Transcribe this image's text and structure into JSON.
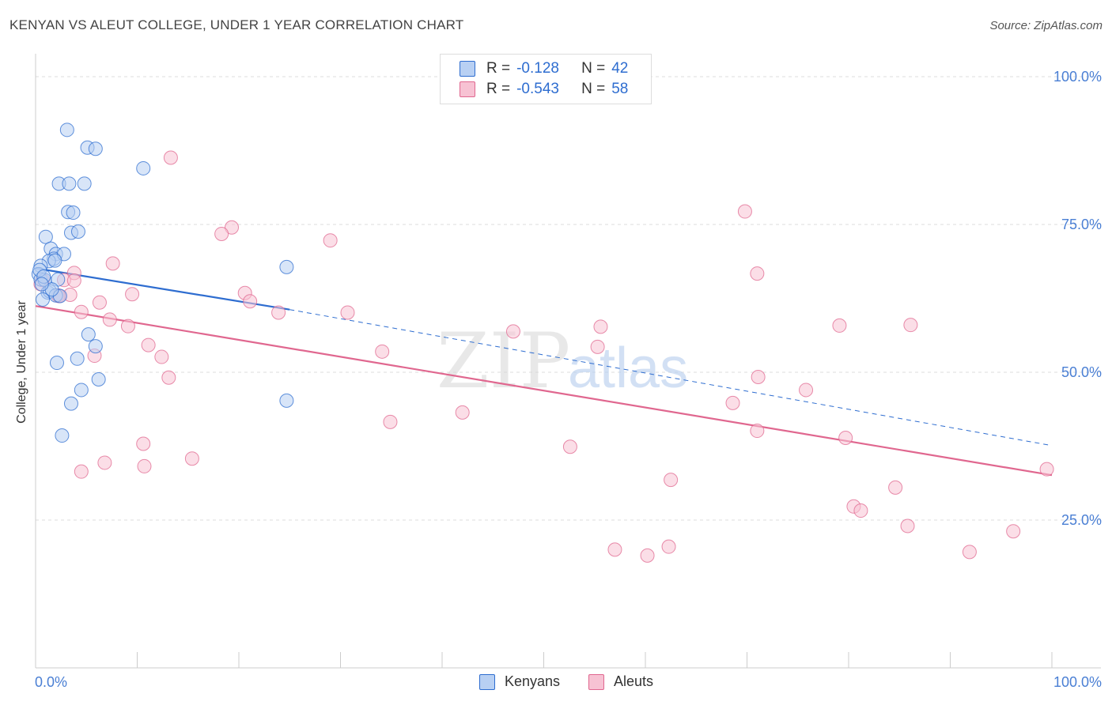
{
  "title": "KENYAN VS ALEUT COLLEGE, UNDER 1 YEAR CORRELATION CHART",
  "source": "Source: ZipAtlas.com",
  "watermark": {
    "zip": "ZIP",
    "atlas": "atlas"
  },
  "legend": {
    "kenyans": {
      "r_label": "R =",
      "r_value": "-0.128",
      "n_label": "N =",
      "n_value": "42"
    },
    "aleuts": {
      "r_label": "R =",
      "r_value": "-0.543",
      "n_label": "N =",
      "n_value": "58"
    }
  },
  "bottom_legend": {
    "kenyans": "Kenyans",
    "aleuts": "Aleuts"
  },
  "chart_data": {
    "type": "scatter",
    "title": "KENYAN VS ALEUT COLLEGE, UNDER 1 YEAR CORRELATION CHART",
    "xlabel": "",
    "ylabel": "College, Under 1 year",
    "xlim": [
      0,
      100
    ],
    "ylim": [
      0,
      104
    ],
    "x_tick_labels": [
      {
        "value": 0,
        "label": "0.0%"
      },
      {
        "value": 100,
        "label": "100.0%"
      }
    ],
    "y_tick_labels": [
      {
        "value": 25,
        "label": "25.0%"
      },
      {
        "value": 50,
        "label": "50.0%"
      },
      {
        "value": 75,
        "label": "75.0%"
      },
      {
        "value": 100,
        "label": "100.0%"
      }
    ],
    "colors": {
      "kenyans": "#2e6dd0",
      "kenyans_fill": "#b8d0f3",
      "aleuts": "#e0678f",
      "aleuts_fill": "#f7c2d3",
      "axis_label": "#4a7fd4"
    },
    "series": [
      {
        "name": "Kenyans",
        "points": [
          [
            3.1,
            91.0
          ],
          [
            5.1,
            88.0
          ],
          [
            5.9,
            87.8
          ],
          [
            10.6,
            84.5
          ],
          [
            2.3,
            81.9
          ],
          [
            3.3,
            81.9
          ],
          [
            4.8,
            81.9
          ],
          [
            3.2,
            77.1
          ],
          [
            3.7,
            77.0
          ],
          [
            1.0,
            72.9
          ],
          [
            3.5,
            73.6
          ],
          [
            4.2,
            73.8
          ],
          [
            1.5,
            70.9
          ],
          [
            2.0,
            70.0
          ],
          [
            1.8,
            69.2
          ],
          [
            1.3,
            68.8
          ],
          [
            2.8,
            70.0
          ],
          [
            0.5,
            68.0
          ],
          [
            0.3,
            66.6
          ],
          [
            0.5,
            65.7
          ],
          [
            0.9,
            65.6
          ],
          [
            2.2,
            65.7
          ],
          [
            1.2,
            63.5
          ],
          [
            1.4,
            63.7
          ],
          [
            2.0,
            63.0
          ],
          [
            2.4,
            62.9
          ],
          [
            0.7,
            62.3
          ],
          [
            24.7,
            67.8
          ],
          [
            5.2,
            56.4
          ],
          [
            5.9,
            54.4
          ],
          [
            4.1,
            52.3
          ],
          [
            2.1,
            51.6
          ],
          [
            6.2,
            48.8
          ],
          [
            4.5,
            47.0
          ],
          [
            3.5,
            44.7
          ],
          [
            2.6,
            39.3
          ],
          [
            24.7,
            45.2
          ],
          [
            0.4,
            67.3
          ],
          [
            0.8,
            66.2
          ],
          [
            1.6,
            64.0
          ],
          [
            1.9,
            68.9
          ],
          [
            0.6,
            64.9
          ]
        ],
        "trend": {
          "x0": 0,
          "y0": 67.6,
          "x1": 25,
          "y1": 60.6,
          "dashed_to_x": 100,
          "dashed_to_y": 37.6
        }
      },
      {
        "name": "Aleuts",
        "points": [
          [
            13.3,
            86.3
          ],
          [
            19.3,
            74.5
          ],
          [
            18.3,
            73.4
          ],
          [
            29.0,
            72.3
          ],
          [
            7.6,
            68.4
          ],
          [
            3.8,
            66.8
          ],
          [
            0.7,
            65.6
          ],
          [
            2.8,
            65.6
          ],
          [
            0.5,
            64.9
          ],
          [
            3.4,
            63.1
          ],
          [
            2.2,
            63.0
          ],
          [
            20.6,
            63.4
          ],
          [
            9.5,
            63.2
          ],
          [
            6.3,
            61.8
          ],
          [
            21.1,
            62.0
          ],
          [
            4.5,
            60.2
          ],
          [
            23.9,
            60.1
          ],
          [
            30.7,
            60.1
          ],
          [
            7.3,
            58.9
          ],
          [
            9.1,
            57.8
          ],
          [
            47.0,
            56.9
          ],
          [
            55.6,
            57.7
          ],
          [
            79.1,
            57.9
          ],
          [
            86.1,
            58.0
          ],
          [
            11.1,
            54.6
          ],
          [
            12.4,
            52.6
          ],
          [
            5.8,
            52.8
          ],
          [
            34.1,
            53.5
          ],
          [
            55.3,
            54.3
          ],
          [
            13.1,
            49.1
          ],
          [
            71.1,
            49.2
          ],
          [
            75.8,
            47.0
          ],
          [
            68.6,
            44.8
          ],
          [
            42.0,
            43.2
          ],
          [
            34.9,
            41.6
          ],
          [
            71.0,
            40.1
          ],
          [
            79.7,
            38.9
          ],
          [
            10.6,
            37.9
          ],
          [
            52.6,
            37.4
          ],
          [
            15.4,
            35.4
          ],
          [
            6.8,
            34.7
          ],
          [
            10.7,
            34.1
          ],
          [
            4.5,
            33.2
          ],
          [
            99.5,
            33.6
          ],
          [
            62.5,
            31.8
          ],
          [
            84.6,
            30.5
          ],
          [
            80.5,
            27.3
          ],
          [
            81.2,
            26.6
          ],
          [
            85.8,
            24.0
          ],
          [
            96.2,
            23.1
          ],
          [
            62.3,
            20.5
          ],
          [
            57.0,
            20.0
          ],
          [
            60.2,
            19.0
          ],
          [
            91.9,
            19.6
          ],
          [
            69.8,
            77.2
          ],
          [
            71.0,
            66.7
          ],
          [
            3.8,
            65.5
          ],
          [
            2.3,
            62.9
          ]
        ],
        "trend": {
          "x0": 0,
          "y0": 61.2,
          "x1": 100,
          "y1": 32.6
        }
      }
    ]
  }
}
